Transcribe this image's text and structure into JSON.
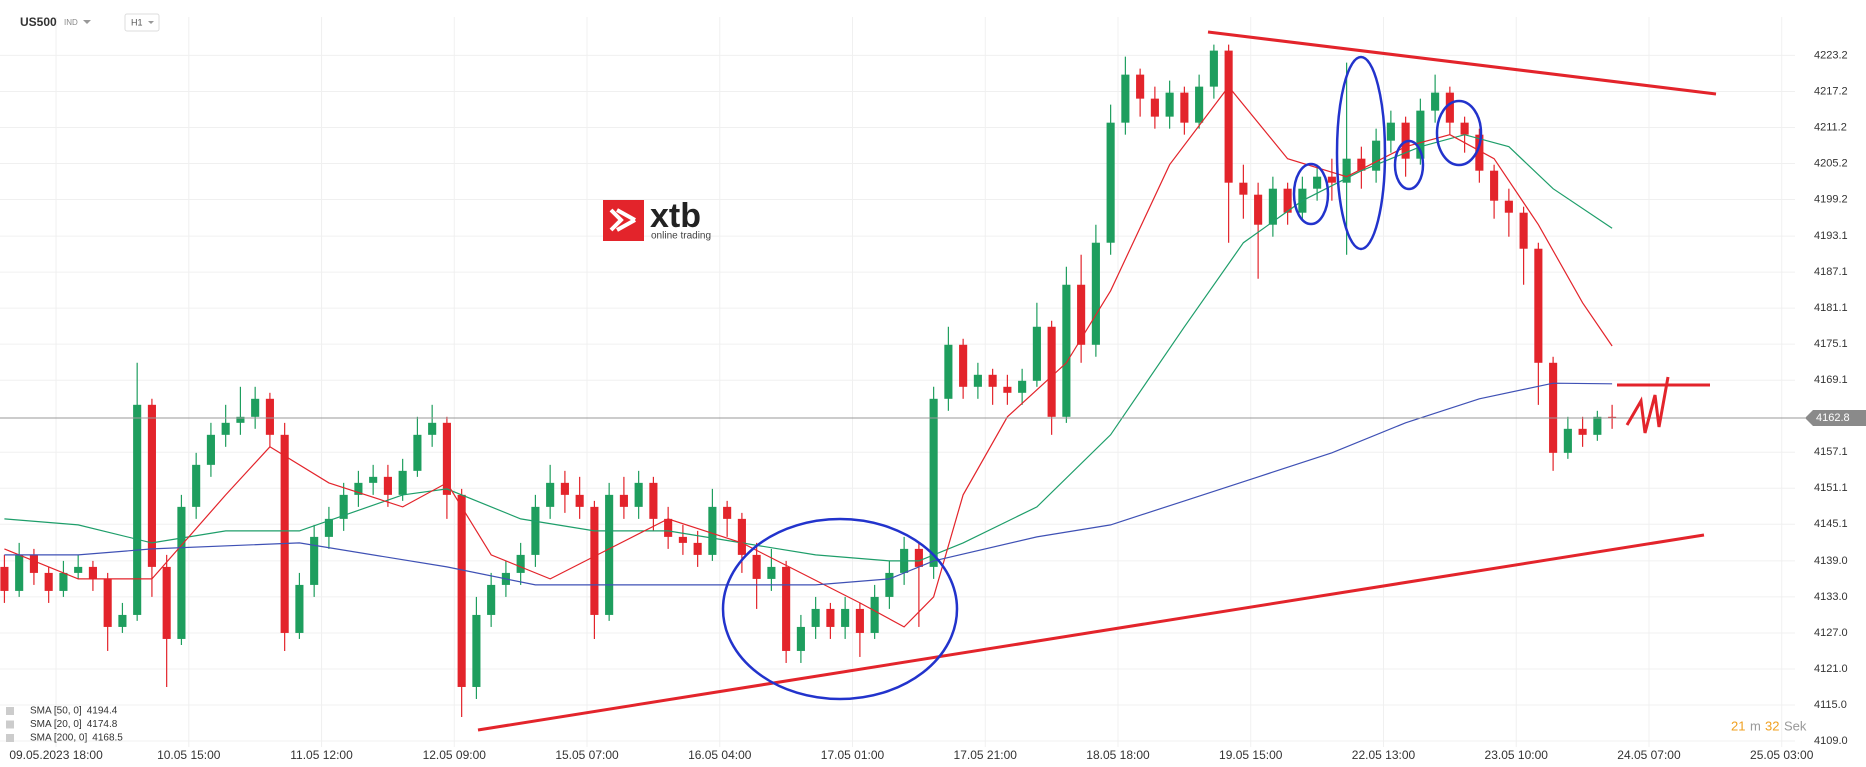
{
  "header": {
    "symbol": "US500",
    "market": "IND",
    "timeframe": "H1"
  },
  "logo": {
    "name": "xtb",
    "tagline": "online trading"
  },
  "timer": {
    "minutes": 21,
    "minutes_unit": "m",
    "seconds": 32,
    "seconds_unit": "Sek"
  },
  "chart_data": {
    "type": "candlestick",
    "up_color": "#1e9e5e",
    "down_color": "#e3242b",
    "grid": true,
    "open": [
      4138,
      4134,
      4140,
      4137,
      4134,
      4137,
      4138,
      4136,
      4128,
      4130,
      4165,
      4138,
      4126,
      4148,
      4155,
      4160,
      4162,
      4163,
      4166,
      4160,
      4127,
      4135,
      4143,
      4146,
      4150,
      4152,
      4153,
      4150,
      4154,
      4160,
      4162,
      4150,
      4118,
      4130,
      4135,
      4137,
      4140,
      4148,
      4152,
      4150,
      4148,
      4130,
      4150,
      4148,
      4152,
      4146,
      4143,
      4142,
      4140,
      4148,
      4146,
      4140,
      4136,
      4138,
      4124,
      4128,
      4131,
      4128,
      4131,
      4127,
      4133,
      4137,
      4141,
      4138,
      4166,
      4175,
      4168,
      4170,
      4168,
      4167,
      4169,
      4178,
      4163,
      4185,
      4175,
      4192,
      4212,
      4220,
      4216,
      4213,
      4217,
      4212,
      4218,
      4224,
      4202,
      4200,
      4195,
      4201,
      4197,
      4201,
      4203,
      4202,
      4206,
      4204,
      4209,
      4212,
      4206,
      4214,
      4217,
      4212,
      4210,
      4204,
      4199,
      4197,
      4191,
      4172,
      4157,
      4161,
      4160,
      4163
    ],
    "high": [
      4140,
      4142,
      4141,
      4138,
      4139,
      4140,
      4139,
      4137,
      4132,
      4172,
      4166,
      4140,
      4150,
      4157,
      4162,
      4165,
      4168,
      4168,
      4167,
      4162,
      4137,
      4145,
      4148,
      4152,
      4154,
      4155,
      4155,
      4156,
      4163,
      4165,
      4163,
      4151,
      4133,
      4137,
      4139,
      4142,
      4150,
      4155,
      4154,
      4153,
      4149,
      4152,
      4153,
      4154,
      4153,
      4148,
      4145,
      4144,
      4151,
      4149,
      4147,
      4142,
      4141,
      4139,
      4130,
      4133,
      4132,
      4133,
      4132,
      4135,
      4139,
      4143,
      4142,
      4168,
      4178,
      4176,
      4172,
      4171,
      4170,
      4171,
      4182,
      4179,
      4188,
      4190,
      4195,
      4215,
      4223,
      4221,
      4218,
      4219,
      4218,
      4220,
      4225,
      4225,
      4205,
      4202,
      4203,
      4202,
      4203,
      4205,
      4206,
      4222,
      4208,
      4211,
      4214,
      4213,
      4216,
      4220,
      4218,
      4213,
      4211,
      4205,
      4201,
      4198,
      4192,
      4173,
      4163,
      4163,
      4164,
      4165
    ],
    "low": [
      4132,
      4133,
      4135,
      4132,
      4133,
      4136,
      4134,
      4124,
      4127,
      4129,
      4133,
      4118,
      4125,
      4146,
      4153,
      4158,
      4160,
      4161,
      4158,
      4124,
      4126,
      4133,
      4141,
      4144,
      4148,
      4150,
      4148,
      4149,
      4153,
      4158,
      4146,
      4113,
      4116,
      4128,
      4133,
      4135,
      4138,
      4146,
      4147,
      4146,
      4126,
      4129,
      4146,
      4146,
      4144,
      4141,
      4140,
      4138,
      4139,
      4143,
      4137,
      4131,
      4134,
      4122,
      4122,
      4126,
      4126,
      4126,
      4123,
      4126,
      4131,
      4135,
      4128,
      4136,
      4164,
      4166,
      4166,
      4165,
      4165,
      4165,
      4168,
      4160,
      4162,
      4172,
      4173,
      4190,
      4210,
      4213,
      4211,
      4211,
      4210,
      4211,
      4216,
      4192,
      4196,
      4186,
      4193,
      4195,
      4196,
      4199,
      4199,
      4190,
      4201,
      4202,
      4207,
      4203,
      4205,
      4212,
      4210,
      4207,
      4202,
      4196,
      4193,
      4185,
      4165,
      4154,
      4156,
      4158,
      4159,
      4161
    ],
    "close": [
      4134,
      4140,
      4137,
      4134,
      4137,
      4138,
      4136,
      4128,
      4130,
      4165,
      4138,
      4126,
      4148,
      4155,
      4160,
      4162,
      4163,
      4166,
      4160,
      4127,
      4135,
      4143,
      4146,
      4150,
      4152,
      4153,
      4150,
      4154,
      4160,
      4162,
      4150,
      4118,
      4130,
      4135,
      4137,
      4140,
      4148,
      4152,
      4150,
      4148,
      4130,
      4150,
      4148,
      4152,
      4146,
      4143,
      4142,
      4140,
      4148,
      4146,
      4140,
      4136,
      4138,
      4124,
      4128,
      4131,
      4128,
      4131,
      4127,
      4133,
      4137,
      4141,
      4138,
      4166,
      4175,
      4168,
      4170,
      4168,
      4167,
      4169,
      4178,
      4163,
      4185,
      4175,
      4192,
      4212,
      4220,
      4216,
      4213,
      4217,
      4212,
      4218,
      4224,
      4202,
      4200,
      4195,
      4201,
      4197,
      4201,
      4203,
      4202,
      4206,
      4204,
      4209,
      4212,
      4206,
      4214,
      4217,
      4212,
      4210,
      4204,
      4199,
      4197,
      4191,
      4172,
      4157,
      4161,
      4160,
      4163,
      4162.8
    ],
    "series": [
      {
        "name": "SMA [50, 0]",
        "color": "#1e9e6a",
        "x": [
          0,
          5,
          10,
          15,
          20,
          27,
          30,
          35,
          40,
          45,
          50,
          55,
          60,
          62,
          65,
          70,
          75,
          80,
          84,
          88,
          92,
          96,
          99,
          102,
          105,
          109
        ],
        "values": [
          4146,
          4145,
          4142,
          4144,
          4144,
          4150,
          4151,
          4146,
          4144,
          4144,
          4142,
          4140,
          4139,
          4139,
          4142,
          4148,
          4160,
          4178,
          4192,
          4199,
          4204,
          4208,
          4210,
          4208,
          4201,
          4194.4
        ]
      },
      {
        "name": "SMA [20, 0]",
        "color": "#e3242b",
        "x": [
          0,
          5,
          10,
          15,
          18,
          22,
          27,
          30,
          33,
          37,
          41,
          45,
          50,
          54,
          58,
          61,
          63,
          65,
          68,
          72,
          75,
          79,
          83,
          87,
          91,
          95,
          98,
          101,
          104,
          107,
          109
        ],
        "values": [
          4141,
          4136,
          4136,
          4150,
          4158,
          4152,
          4148,
          4152,
          4140,
          4136,
          4141,
          4146,
          4142,
          4137,
          4132,
          4128,
          4133,
          4150,
          4163,
          4172,
          4184,
          4205,
          4218,
          4206,
          4203,
          4208,
          4210,
          4206,
          4195,
          4182,
          4174.8
        ]
      },
      {
        "name": "SMA [200, 0]",
        "color": "#3f51b5",
        "x": [
          0,
          5,
          10,
          20,
          30,
          36,
          45,
          55,
          60,
          63,
          70,
          75,
          80,
          85,
          90,
          95,
          100,
          105,
          109
        ],
        "values": [
          4140,
          4140,
          4141,
          4142,
          4138,
          4135,
          4135,
          4135,
          4136,
          4139,
          4143,
          4145,
          4149,
          4153,
          4157,
          4162,
          4166,
          4168.6,
          4168.5
        ]
      }
    ],
    "xlim": [
      -0.3,
      121.4
    ],
    "xticks": [
      {
        "value": 3.5,
        "label": "09.05.2023   18:00"
      },
      {
        "value": 12.5,
        "label": "10.05 15:00"
      },
      {
        "value": 21.5,
        "label": "11.05 12:00"
      },
      {
        "value": 30.5,
        "label": "12.05 09:00"
      },
      {
        "value": 39.5,
        "label": "15.05 07:00"
      },
      {
        "value": 48.5,
        "label": "16.05 04:00"
      },
      {
        "value": 57.5,
        "label": "17.05 01:00"
      },
      {
        "value": 66.5,
        "label": "17.05 21:00"
      },
      {
        "value": 75.5,
        "label": "18.05 18:00"
      },
      {
        "value": 84.5,
        "label": "19.05 15:00"
      },
      {
        "value": 93.5,
        "label": "22.05 13:00"
      },
      {
        "value": 102.5,
        "label": "23.05 10:00"
      },
      {
        "value": 111.5,
        "label": "24.05 07:00"
      },
      {
        "value": 120.5,
        "label": "25.05 03:00"
      }
    ],
    "ylim": [
      4108,
      4229.6
    ],
    "yticks": [
      {
        "value": 4109,
        "label": "4109.0"
      },
      {
        "value": 4115,
        "label": "4115.0"
      },
      {
        "value": 4121,
        "label": "4121.0"
      },
      {
        "value": 4127,
        "label": "4127.0"
      },
      {
        "value": 4133,
        "label": "4133.0"
      },
      {
        "value": 4139,
        "label": "4139.0"
      },
      4145.1,
      4151.1,
      4157.1,
      4169.1,
      4175.1,
      4181.1,
      4187.1,
      4193.1,
      4199.2,
      4205.2,
      4211.2,
      4217.2,
      4223.2
    ]
  }
}
